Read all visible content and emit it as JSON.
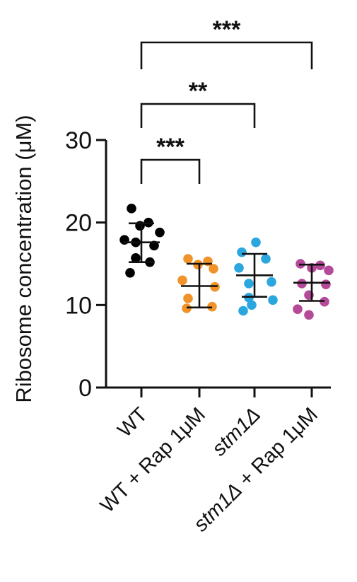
{
  "chart_data": {
    "type": "scatter",
    "title": "",
    "ylabel": "Ribosome concentration (μM)",
    "xlabel": "",
    "ylim": [
      0,
      30
    ],
    "yticks": [
      0,
      10,
      20,
      30
    ],
    "yticklabels": [
      "0",
      "10",
      "20",
      "30"
    ],
    "categories": [
      "WT",
      "WT + Rap 1μM",
      "stm1Δ",
      "stm1Δ + Rap 1μM"
    ],
    "category_style": [
      "normal",
      "normal",
      "italic",
      "mixed"
    ],
    "series": [
      {
        "category": "WT",
        "color": "#000000",
        "points": [
          21.7,
          20.0,
          19.6,
          18.8,
          17.9,
          17.6,
          17.2,
          15.7,
          15.2,
          13.9
        ],
        "mean": 17.6,
        "sd_low": 15.2,
        "sd_high": 19.9
      },
      {
        "category": "WT + Rap 1μM",
        "color": "#F0932A",
        "points": [
          15.6,
          15.3,
          14.9,
          14.4,
          13.0,
          12.2,
          10.8,
          9.8,
          9.6
        ],
        "mean": 12.3,
        "sd_low": 9.7,
        "sd_high": 15.0
      },
      {
        "category": "stm1Δ",
        "color": "#2BA6DE",
        "points": [
          17.6,
          16.4,
          15.6,
          14.5,
          12.8,
          12.6,
          10.9,
          10.6,
          10.0,
          9.3
        ],
        "mean": 13.6,
        "sd_low": 11.0,
        "sd_high": 16.2
      },
      {
        "category": "stm1Δ + Rap 1μM",
        "color": "#B54A98",
        "points": [
          15.0,
          14.8,
          14.5,
          14.2,
          12.6,
          12.5,
          11.2,
          10.4,
          9.5,
          8.8
        ],
        "mean": 12.7,
        "sd_low": 10.5,
        "sd_high": 14.9
      }
    ],
    "significance": [
      {
        "from": 0,
        "to": 1,
        "label": "***"
      },
      {
        "from": 0,
        "to": 2,
        "label": "**"
      },
      {
        "from": 0,
        "to": 3,
        "label": "***"
      }
    ],
    "grid": false,
    "legend": "none"
  }
}
